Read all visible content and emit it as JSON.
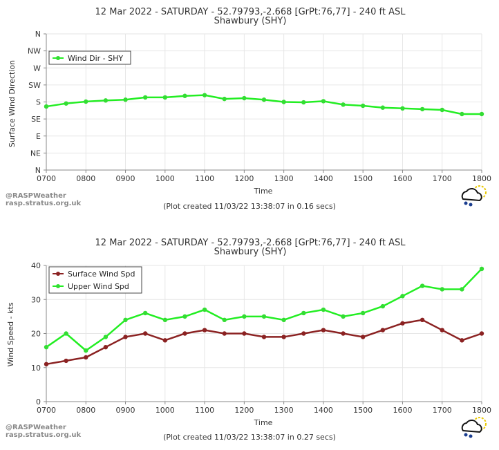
{
  "credits": {
    "line1": "@RASPWeather",
    "line2": "rasp.stratus.org.uk"
  },
  "colors": {
    "green": "#22ee22",
    "green_marker": "#33dd33",
    "maroon": "#8b2222",
    "grid": "#e6e6e6",
    "axis": "#888888"
  },
  "icons": [
    "rain-cloud-sun-icon"
  ],
  "chart_data": [
    {
      "type": "line",
      "title": "12 Mar 2022 - SATURDAY - 52.79793,-2.668 [GrPt:76,77]  - 240 ft ASL",
      "subtitle": "Shawbury (SHY)",
      "xlabel": "Time",
      "ylabel": "Surface Wind Direction",
      "footnote": "(Plot created 11/03/22 13:38:07 in 0.16 secs)",
      "y_categories": [
        "N",
        "NE",
        "E",
        "SE",
        "S",
        "SW",
        "W",
        "NW",
        "N"
      ],
      "ylim": [
        0,
        360
      ],
      "x_ticks": [
        "0700",
        "0800",
        "0900",
        "1000",
        "1100",
        "1200",
        "1300",
        "1400",
        "1500",
        "1600",
        "1700",
        "1800"
      ],
      "x": [
        700,
        750,
        800,
        850,
        900,
        950,
        1000,
        1050,
        1100,
        1150,
        1200,
        1250,
        1300,
        1350,
        1400,
        1450,
        1500,
        1550,
        1600,
        1650,
        1700,
        1750,
        1800
      ],
      "legend_position": "top-left",
      "grid": true,
      "series": [
        {
          "name": "Wind Dir - SHY",
          "color": "#22ee22",
          "values": [
            168,
            176,
            181,
            184,
            186,
            192,
            192,
            196,
            198,
            188,
            190,
            186,
            180,
            179,
            182,
            173,
            170,
            165,
            163,
            161,
            159,
            148,
            148
          ]
        }
      ]
    },
    {
      "type": "line",
      "title": "12 Mar 2022 - SATURDAY - 52.79793,-2.668 [GrPt:76,77]  - 240 ft ASL",
      "subtitle": "Shawbury (SHY)",
      "xlabel": "Time",
      "ylabel": "Wind Speed - kts",
      "footnote": "(Plot created 11/03/22 13:38:07 in 0.27 secs)",
      "ylim": [
        0,
        40
      ],
      "y_ticks": [
        "0",
        "10",
        "20",
        "30",
        "40"
      ],
      "x_ticks": [
        "0700",
        "0800",
        "0900",
        "1000",
        "1100",
        "1200",
        "1300",
        "1400",
        "1500",
        "1600",
        "1700",
        "1800"
      ],
      "x": [
        700,
        750,
        800,
        850,
        900,
        950,
        1000,
        1050,
        1100,
        1150,
        1200,
        1250,
        1300,
        1350,
        1400,
        1450,
        1500,
        1550,
        1600,
        1650,
        1700,
        1750,
        1800
      ],
      "legend_position": "top-left",
      "grid": true,
      "series": [
        {
          "name": "Surface Wind Spd",
          "color": "#8b2222",
          "values": [
            11,
            12,
            13,
            16,
            19,
            20,
            18,
            20,
            21,
            20,
            20,
            19,
            19,
            20,
            21,
            20,
            19,
            21,
            23,
            24,
            21,
            18,
            20
          ]
        },
        {
          "name": "Upper Wind Spd",
          "color": "#22ee22",
          "values": [
            16,
            20,
            15,
            19,
            24,
            26,
            24,
            25,
            27,
            24,
            25,
            25,
            24,
            26,
            27,
            25,
            26,
            28,
            31,
            34,
            33,
            33,
            39
          ]
        }
      ]
    }
  ]
}
